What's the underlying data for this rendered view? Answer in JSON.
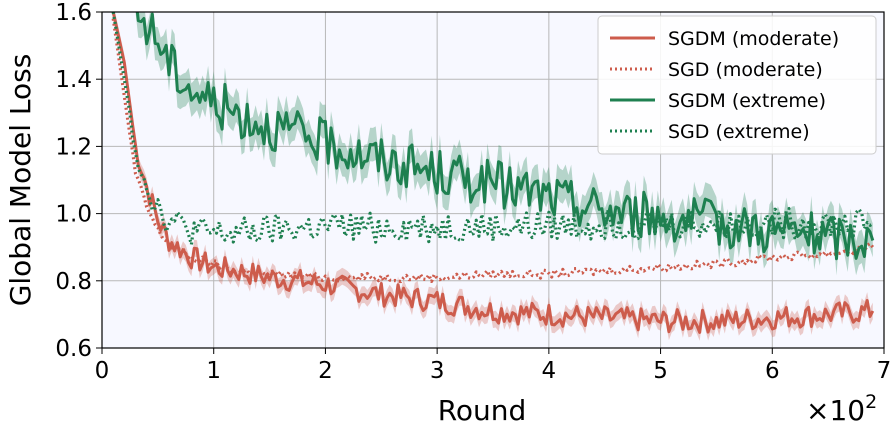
{
  "chart_data": {
    "type": "line",
    "xlabel": "Round",
    "ylabel": "Global Model Loss",
    "x_scale_label": "×10",
    "x_scale_exponent": "2",
    "xlim": [
      0,
      7
    ],
    "ylim": [
      0.6,
      1.6
    ],
    "x_ticks": [
      "0",
      "1",
      "2",
      "3",
      "4",
      "5",
      "6",
      "7"
    ],
    "y_ticks": [
      "0.6",
      "0.8",
      "1.0",
      "1.2",
      "1.4",
      "1.6"
    ],
    "grid": true,
    "legend_position": "top-right",
    "series": [
      {
        "name": "SGDM (moderate)",
        "color": "#cd5c4c",
        "style": "solid",
        "shaded_band": true,
        "x": [
          0.1,
          0.2,
          0.3,
          0.4,
          0.5,
          0.6,
          0.8,
          1.0,
          1.2,
          1.5,
          2.0,
          2.5,
          3.0,
          3.5,
          4.0,
          4.5,
          5.0,
          5.5,
          6.0,
          6.5,
          6.9
        ],
        "y": [
          1.6,
          1.45,
          1.2,
          1.08,
          0.98,
          0.92,
          0.87,
          0.84,
          0.83,
          0.81,
          0.79,
          0.76,
          0.74,
          0.71,
          0.7,
          0.69,
          0.68,
          0.68,
          0.69,
          0.7,
          0.71
        ]
      },
      {
        "name": "SGD (moderate)",
        "color": "#cd5c4c",
        "style": "dotted",
        "shaded_band": false,
        "x": [
          0.1,
          0.2,
          0.3,
          0.4,
          0.5,
          0.6,
          0.8,
          1.0,
          1.2,
          1.5,
          2.0,
          2.5,
          3.0,
          3.5,
          4.0,
          4.5,
          5.0,
          5.5,
          6.0,
          6.5,
          6.9
        ],
        "y": [
          1.58,
          1.35,
          1.12,
          1.02,
          0.95,
          0.91,
          0.87,
          0.85,
          0.83,
          0.82,
          0.81,
          0.81,
          0.81,
          0.82,
          0.82,
          0.83,
          0.84,
          0.85,
          0.87,
          0.88,
          0.9
        ]
      },
      {
        "name": "SGDM (extreme)",
        "color": "#1e8050",
        "style": "solid",
        "shaded_band": true,
        "x": [
          0.3,
          0.5,
          0.6,
          0.8,
          1.0,
          1.2,
          1.5,
          2.0,
          2.5,
          3.0,
          3.5,
          4.0,
          4.5,
          5.0,
          5.5,
          6.0,
          6.5,
          6.9
        ],
        "y": [
          1.6,
          1.52,
          1.45,
          1.37,
          1.33,
          1.3,
          1.26,
          1.21,
          1.16,
          1.12,
          1.09,
          1.05,
          1.01,
          0.99,
          0.97,
          0.95,
          0.93,
          0.92
        ]
      },
      {
        "name": "SGD (extreme)",
        "color": "#1e8050",
        "style": "dotted",
        "shaded_band": false,
        "x": [
          0.1,
          0.2,
          0.3,
          0.4,
          0.5,
          0.6,
          0.8,
          1.0,
          1.2,
          1.5,
          2.0,
          2.5,
          3.0,
          3.5,
          4.0,
          4.5,
          5.0,
          5.5,
          6.0,
          6.5,
          6.9
        ],
        "y": [
          1.6,
          1.4,
          1.2,
          1.08,
          1.02,
          0.98,
          0.95,
          0.94,
          0.94,
          0.95,
          0.96,
          0.96,
          0.96,
          0.96,
          0.96,
          0.97,
          0.97,
          0.97,
          0.97,
          0.97,
          0.97
        ]
      }
    ]
  }
}
